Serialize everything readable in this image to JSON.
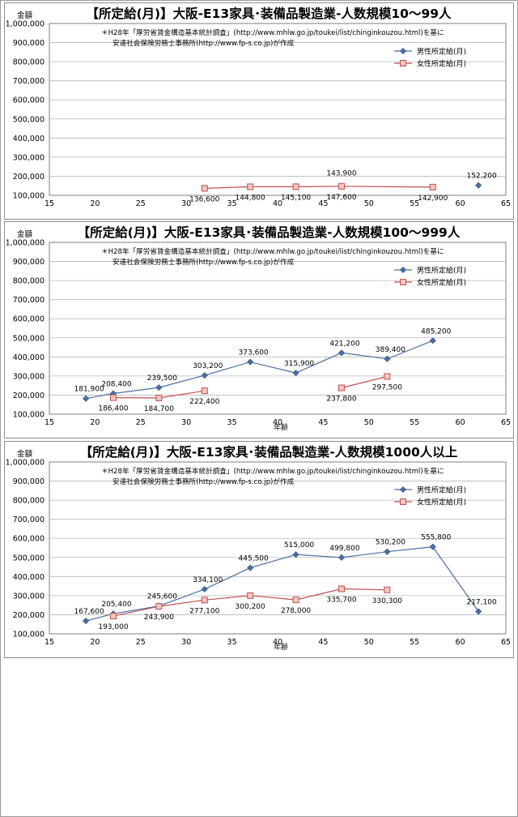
{
  "chart_data": [
    {
      "type": "line",
      "title": "【所定給(月)】大阪-E13家具･装備品製造業-人数規模10～99人",
      "ylabel": "金額",
      "xlabel": "",
      "note_line1": "＊H28年「厚労省賃金構造基本統計調査」(http://www.mhlw.go.jp/toukei/list/chinginkouzou.html)を基に",
      "note_line2": "安達社会保険労務士事務所(http://www.fp-s.co.jp)が作成",
      "xlim": [
        15,
        65
      ],
      "ylim": [
        100000,
        1000000
      ],
      "x_ticks": [
        15,
        20,
        25,
        30,
        35,
        40,
        45,
        50,
        55,
        60,
        65
      ],
      "y_ticks": [
        100000,
        200000,
        300000,
        400000,
        500000,
        600000,
        700000,
        800000,
        900000,
        1000000
      ],
      "legend_position": "top-right",
      "grid": true,
      "series": [
        {
          "name": "男性所定給(月)",
          "color": "#4a6fa5",
          "marker": "diamond",
          "points": [
            {
              "x": 62,
              "y": 152200,
              "label": "152,200"
            }
          ]
        },
        {
          "name": "女性所定給(月)",
          "color": "#c0504d",
          "marker": "square",
          "points": [
            {
              "x": 32,
              "y": 136600,
              "label": "136,600"
            },
            {
              "x": 37,
              "y": 144800,
              "label": "144,800"
            },
            {
              "x": 42,
              "y": 145100,
              "label": "145,100"
            },
            {
              "x": 47,
              "y": 147600,
              "label": "147,600"
            },
            {
              "x": 57,
              "y": 142900,
              "label": "142,900"
            }
          ]
        }
      ],
      "extra_labels": [
        {
          "x": 47,
          "y": 143900,
          "label": "143,900"
        }
      ]
    },
    {
      "type": "line",
      "title": "【所定給(月)】大阪-E13家具･装備品製造業-人数規模100～999人",
      "ylabel": "金額",
      "xlabel": "年齢",
      "note_line1": "＊H28年「厚労省賃金構造基本統計調査」(http://www.mhlw.go.jp/toukei/list/chinginkouzou.html)を基に",
      "note_line2": "安達社会保険労務士事務所(http://www.fp-s.co.jp)が作成",
      "xlim": [
        15,
        65
      ],
      "ylim": [
        100000,
        1000000
      ],
      "x_ticks": [
        15,
        20,
        25,
        30,
        35,
        40,
        45,
        50,
        55,
        60,
        65
      ],
      "y_ticks": [
        100000,
        200000,
        300000,
        400000,
        500000,
        600000,
        700000,
        800000,
        900000,
        1000000
      ],
      "legend_position": "top-right",
      "grid": true,
      "series": [
        {
          "name": "男性所定給(月)",
          "color": "#4a6fa5",
          "marker": "diamond",
          "points": [
            {
              "x": 19,
              "y": 181900,
              "label": "181,900"
            },
            {
              "x": 22,
              "y": 208400,
              "label": "208,400"
            },
            {
              "x": 27,
              "y": 239500,
              "label": "239,500"
            },
            {
              "x": 32,
              "y": 303200,
              "label": "303,200"
            },
            {
              "x": 37,
              "y": 373600,
              "label": "373,600"
            },
            {
              "x": 42,
              "y": 315900,
              "label": "315,900"
            },
            {
              "x": 47,
              "y": 421200,
              "label": "421,200"
            },
            {
              "x": 52,
              "y": 389400,
              "label": "389,400"
            },
            {
              "x": 57,
              "y": 485200,
              "label": "485,200"
            }
          ]
        },
        {
          "name": "女性所定給(月)",
          "color": "#c0504d",
          "marker": "square",
          "points": [
            {
              "x": 22,
              "y": 186400,
              "label": "186,400"
            },
            {
              "x": 27,
              "y": 184700,
              "label": "184,700"
            },
            {
              "x": 32,
              "y": 222400,
              "label": "222,400"
            },
            {
              "x": 47,
              "y": 237800,
              "label": "237,800",
              "break_before": true
            },
            {
              "x": 52,
              "y": 297500,
              "label": "297,500"
            }
          ]
        }
      ],
      "extra_labels": []
    },
    {
      "type": "line",
      "title": "【所定給(月)】大阪-E13家具･装備品製造業-人数規模1000人以上",
      "ylabel": "金額",
      "xlabel": "年齢",
      "note_line1": "＊H28年「厚労省賃金構造基本統計調査」(http://www.mhlw.go.jp/toukei/list/chinginkouzou.html)を基に",
      "note_line2": "安達社会保険労務士事務所(http://www.fp-s.co.jp)が作成",
      "xlim": [
        15,
        65
      ],
      "ylim": [
        100000,
        1000000
      ],
      "x_ticks": [
        15,
        20,
        25,
        30,
        35,
        40,
        45,
        50,
        55,
        60,
        65
      ],
      "y_ticks": [
        100000,
        200000,
        300000,
        400000,
        500000,
        600000,
        700000,
        800000,
        900000,
        1000000
      ],
      "legend_position": "top-right",
      "grid": true,
      "series": [
        {
          "name": "男性所定給(月)",
          "color": "#4a6fa5",
          "marker": "diamond",
          "points": [
            {
              "x": 19,
              "y": 167600,
              "label": "167,600"
            },
            {
              "x": 22,
              "y": 205400,
              "label": "205,400"
            },
            {
              "x": 27,
              "y": 245600,
              "label": "245,600"
            },
            {
              "x": 32,
              "y": 334100,
              "label": "334,100"
            },
            {
              "x": 37,
              "y": 445500,
              "label": "445,500"
            },
            {
              "x": 42,
              "y": 515000,
              "label": "515,000"
            },
            {
              "x": 47,
              "y": 499800,
              "label": "499,800"
            },
            {
              "x": 52,
              "y": 530200,
              "label": "530,200"
            },
            {
              "x": 57,
              "y": 555800,
              "label": "555,800"
            },
            {
              "x": 62,
              "y": 217100,
              "label": "217,100"
            }
          ]
        },
        {
          "name": "女性所定給(月)",
          "color": "#c0504d",
          "marker": "square",
          "points": [
            {
              "x": 22,
              "y": 193000,
              "label": "193,000"
            },
            {
              "x": 27,
              "y": 243900,
              "label": "243,900"
            },
            {
              "x": 32,
              "y": 277100,
              "label": "277,100"
            },
            {
              "x": 37,
              "y": 300200,
              "label": "300,200"
            },
            {
              "x": 42,
              "y": 278000,
              "label": "278,000"
            },
            {
              "x": 47,
              "y": 335700,
              "label": "335,700"
            },
            {
              "x": 52,
              "y": 330300,
              "label": "330,300"
            }
          ]
        }
      ],
      "extra_labels": []
    }
  ]
}
